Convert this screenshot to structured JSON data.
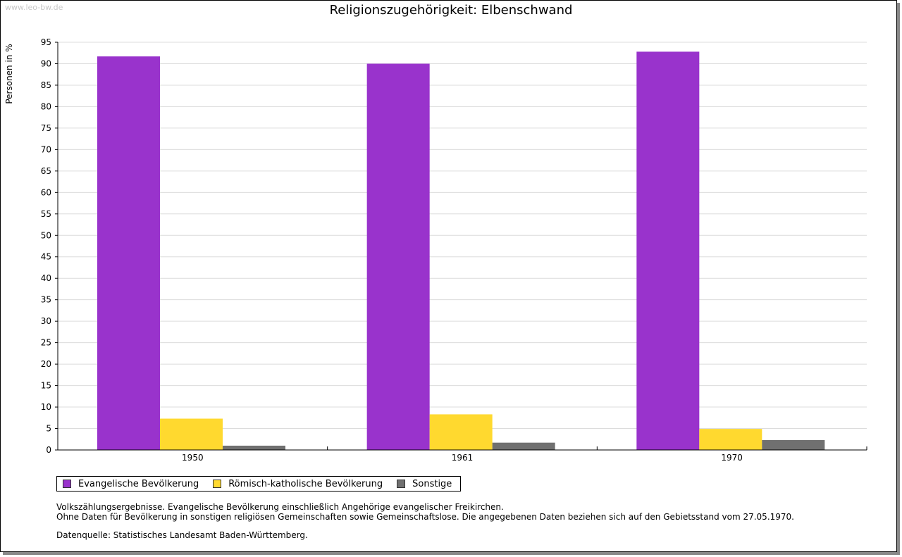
{
  "watermark": "www.leo-bw.de",
  "chart_data": {
    "type": "bar",
    "title": "Religionszugehörigkeit: Elbenschwand",
    "xlabel": "",
    "ylabel": "Personen in %",
    "ylim": [
      0,
      95
    ],
    "yticks": [
      0,
      5,
      10,
      15,
      20,
      25,
      30,
      35,
      40,
      45,
      50,
      55,
      60,
      65,
      70,
      75,
      80,
      85,
      90,
      95
    ],
    "grid": true,
    "legend_position": "bottom-left",
    "categories": [
      "1950",
      "1961",
      "1970"
    ],
    "series": [
      {
        "name": "Evangelische Bevölkerung",
        "color": "#9933cc",
        "values": [
          91.7,
          90.0,
          92.8
        ]
      },
      {
        "name": "Römisch-katholische Bevölkerung",
        "color": "#ffd92f",
        "values": [
          7.3,
          8.3,
          4.9
        ]
      },
      {
        "name": "Sonstige",
        "color": "#707070",
        "values": [
          1.0,
          1.7,
          2.3
        ]
      }
    ]
  },
  "notes": {
    "line1": "Volkszählungsergebnisse. Evangelische Bevölkerung einschließlich Angehörige evangelischer Freikirchen.",
    "line2": "Ohne Daten für Bevölkerung in sonstigen religiösen Gemeinschaften sowie Gemeinschaftslose. Die angegebenen Daten beziehen sich auf den Gebietsstand vom 27.05.1970.",
    "source": "Datenquelle: Statistisches Landesamt Baden-Württemberg."
  }
}
